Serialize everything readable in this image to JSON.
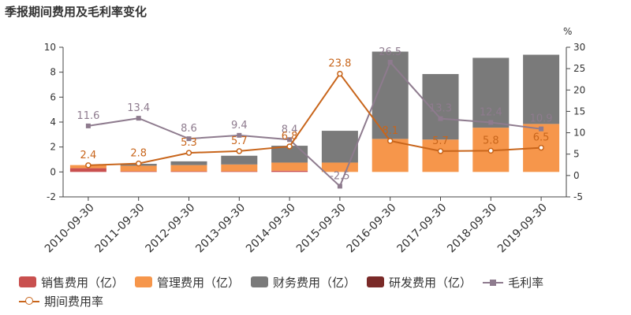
{
  "title": "季报期间费用及毛利率变化",
  "chart_data": {
    "type": "bar",
    "stacked": true,
    "categories": [
      "2010-09-30",
      "2011-09-30",
      "2012-09-30",
      "2013-09-30",
      "2014-09-30",
      "2015-09-30",
      "2016-09-30",
      "2017-09-30",
      "2018-09-30",
      "2019-09-30"
    ],
    "y_left": {
      "min": -2,
      "max": 10,
      "ticks": [
        -2,
        0,
        2,
        4,
        6,
        8,
        10
      ]
    },
    "y_right": {
      "min": -5,
      "max": 30,
      "ticks": [
        -5,
        0,
        5,
        10,
        15,
        20,
        25,
        30
      ],
      "unit": "%"
    },
    "series": [
      {
        "name": "销售费用（亿）",
        "type": "bar",
        "color": "#c9504f",
        "values": [
          0.3,
          0.05,
          0.05,
          0.05,
          0.1,
          0.0,
          0.0,
          0.0,
          0.0,
          0.0
        ]
      },
      {
        "name": "管理费用（亿）",
        "type": "bar",
        "color": "#f6964b",
        "values": [
          0.25,
          0.45,
          0.5,
          0.55,
          0.65,
          0.75,
          2.65,
          2.6,
          3.55,
          3.85
        ]
      },
      {
        "name": "财务费用（亿）",
        "type": "bar",
        "color": "#7a7a7a",
        "values": [
          0.0,
          0.15,
          0.3,
          0.7,
          1.35,
          2.55,
          7.0,
          5.25,
          5.6,
          5.55
        ]
      },
      {
        "name": "研发费用（亿）",
        "type": "bar",
        "color": "#7a2a28",
        "values": [
          0.0,
          0.0,
          0.0,
          0.0,
          0.0,
          0.0,
          0.0,
          0.0,
          0.0,
          0.0
        ]
      },
      {
        "name": "毛利率",
        "type": "line",
        "axis": "right",
        "color": "#8e7b8e",
        "marker": "square",
        "values": [
          11.6,
          13.4,
          8.6,
          9.4,
          8.4,
          -2.5,
          26.5,
          13.3,
          12.4,
          10.9
        ],
        "labels": [
          "11.6",
          "13.4",
          "8.6",
          "9.4",
          "8.4",
          "-2.5",
          "26.5",
          "13.3",
          "12.4",
          "10.9"
        ]
      },
      {
        "name": "期间费用率",
        "type": "line",
        "axis": "right",
        "color": "#c8651b",
        "marker": "circle",
        "values": [
          2.4,
          2.8,
          5.3,
          5.7,
          6.8,
          23.8,
          8.1,
          5.7,
          5.8,
          6.5
        ],
        "labels": [
          "2.4",
          "2.8",
          "5.3",
          "5.7",
          "6.8",
          "23.8",
          "8.1",
          "5.7",
          "5.8",
          "6.5"
        ]
      }
    ],
    "legend_position": "bottom"
  }
}
